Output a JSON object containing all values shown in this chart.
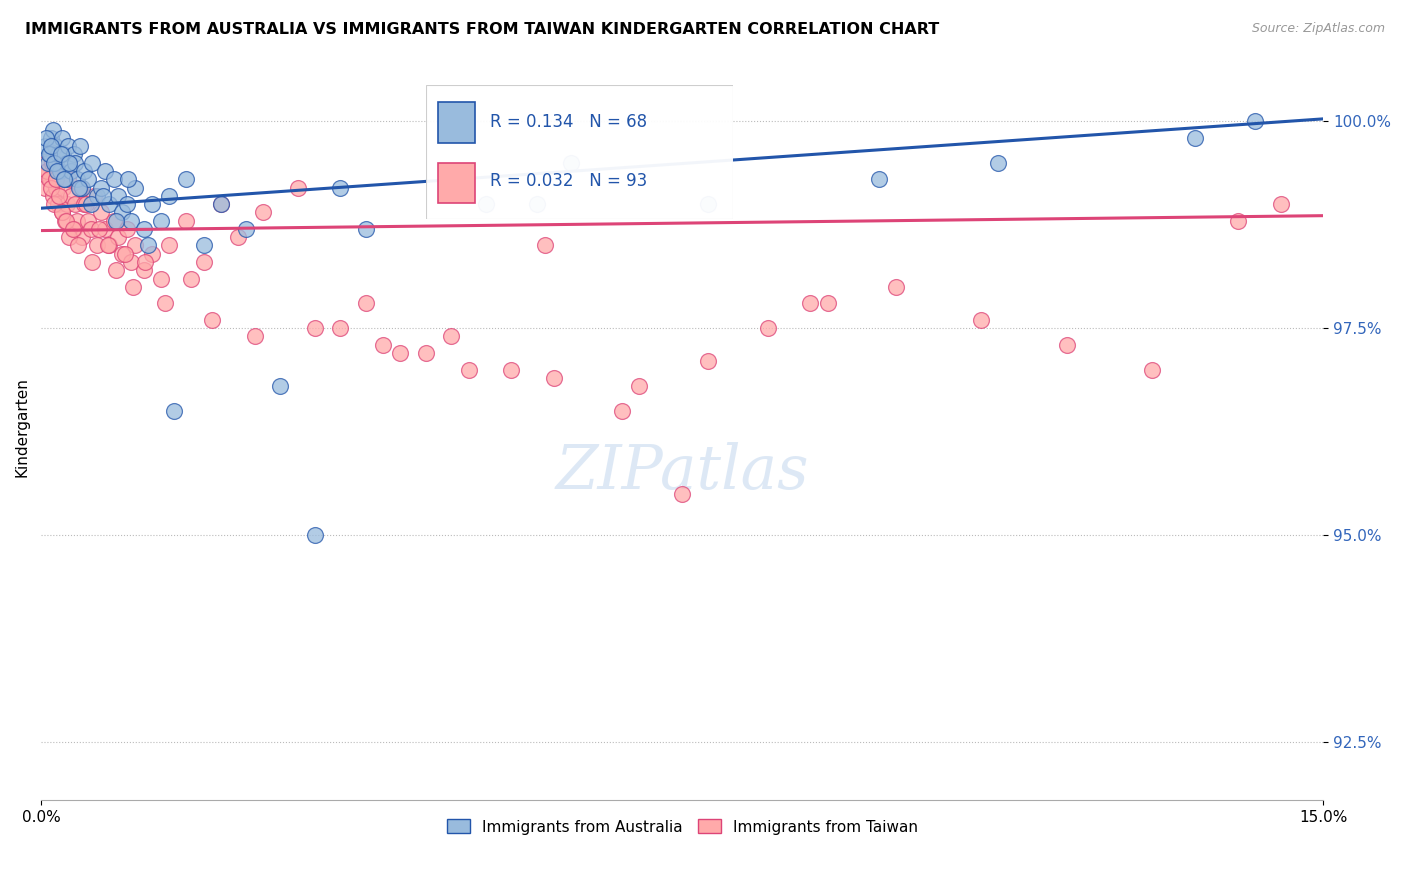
{
  "title": "IMMIGRANTS FROM AUSTRALIA VS IMMIGRANTS FROM TAIWAN KINDERGARTEN CORRELATION CHART",
  "source": "Source: ZipAtlas.com",
  "ylabel": "Kindergarten",
  "x_min": 0.0,
  "x_max": 15.0,
  "y_min": 91.8,
  "y_max": 100.8,
  "y_ticks": [
    92.5,
    95.0,
    97.5,
    100.0
  ],
  "legend_labels": [
    "Immigrants from Australia",
    "Immigrants from Taiwan"
  ],
  "r_australia": 0.134,
  "n_australia": 68,
  "r_taiwan": 0.032,
  "n_taiwan": 93,
  "color_australia": "#99BBDD",
  "color_taiwan": "#FFAAAA",
  "line_color_australia": "#2255AA",
  "line_color_taiwan": "#DD4477",
  "au_intercept": 98.95,
  "au_slope": 0.072,
  "tw_intercept": 98.68,
  "tw_slope": 0.012,
  "australia_x": [
    0.05,
    0.08,
    0.1,
    0.12,
    0.14,
    0.16,
    0.18,
    0.2,
    0.22,
    0.24,
    0.26,
    0.28,
    0.3,
    0.32,
    0.35,
    0.38,
    0.4,
    0.42,
    0.45,
    0.48,
    0.5,
    0.55,
    0.6,
    0.65,
    0.7,
    0.75,
    0.8,
    0.85,
    0.9,
    0.95,
    1.0,
    1.05,
    1.1,
    1.2,
    1.3,
    1.4,
    1.5,
    1.7,
    1.9,
    2.1,
    2.4,
    2.8,
    3.2,
    3.8,
    5.2,
    6.2,
    7.8,
    9.8,
    11.2,
    13.5,
    0.06,
    0.09,
    0.11,
    0.15,
    0.19,
    0.23,
    0.27,
    0.33,
    0.44,
    0.58,
    0.72,
    0.88,
    1.02,
    1.25,
    1.55,
    3.5,
    5.8,
    14.2
  ],
  "australia_y": [
    99.7,
    99.5,
    99.6,
    99.8,
    99.9,
    99.7,
    99.5,
    99.6,
    99.4,
    99.8,
    99.6,
    99.3,
    99.5,
    99.7,
    99.4,
    99.6,
    99.5,
    99.3,
    99.7,
    99.2,
    99.4,
    99.3,
    99.5,
    99.1,
    99.2,
    99.4,
    99.0,
    99.3,
    99.1,
    98.9,
    99.0,
    98.8,
    99.2,
    98.7,
    99.0,
    98.8,
    99.1,
    99.3,
    98.5,
    99.0,
    98.7,
    96.8,
    95.0,
    98.7,
    99.0,
    99.5,
    99.0,
    99.3,
    99.5,
    99.8,
    99.8,
    99.6,
    99.7,
    99.5,
    99.4,
    99.6,
    99.3,
    99.5,
    99.2,
    99.0,
    99.1,
    98.8,
    99.3,
    98.5,
    96.5,
    99.2,
    99.0,
    100.0
  ],
  "taiwan_x": [
    0.04,
    0.06,
    0.08,
    0.1,
    0.12,
    0.14,
    0.16,
    0.18,
    0.2,
    0.22,
    0.24,
    0.26,
    0.28,
    0.3,
    0.32,
    0.35,
    0.38,
    0.4,
    0.42,
    0.45,
    0.48,
    0.5,
    0.55,
    0.58,
    0.62,
    0.65,
    0.7,
    0.75,
    0.8,
    0.85,
    0.9,
    0.95,
    1.0,
    1.05,
    1.1,
    1.2,
    1.3,
    1.4,
    1.5,
    1.7,
    1.9,
    2.1,
    2.3,
    2.6,
    3.0,
    3.5,
    4.0,
    4.5,
    5.5,
    0.07,
    0.09,
    0.11,
    0.13,
    0.15,
    0.17,
    0.21,
    0.25,
    0.29,
    0.33,
    0.37,
    0.43,
    0.52,
    0.6,
    0.68,
    0.78,
    0.88,
    0.98,
    1.08,
    1.22,
    1.45,
    1.75,
    2.0,
    2.5,
    3.2,
    4.2,
    5.0,
    6.0,
    7.0,
    7.8,
    8.5,
    9.2,
    10.0,
    11.0,
    12.0,
    13.0,
    14.0,
    14.5,
    3.8,
    4.8,
    6.8,
    5.9,
    7.5,
    9.0
  ],
  "taiwan_y": [
    99.2,
    99.5,
    99.4,
    99.3,
    99.6,
    99.1,
    99.4,
    99.2,
    99.0,
    99.3,
    98.9,
    99.2,
    98.8,
    99.0,
    99.3,
    99.1,
    98.7,
    99.0,
    98.8,
    99.2,
    98.6,
    99.0,
    98.8,
    98.7,
    99.1,
    98.5,
    98.9,
    98.7,
    98.5,
    98.8,
    98.6,
    98.4,
    98.7,
    98.3,
    98.5,
    98.2,
    98.4,
    98.1,
    98.5,
    98.8,
    98.3,
    99.0,
    98.6,
    98.9,
    99.2,
    97.5,
    97.3,
    97.2,
    97.0,
    99.4,
    99.3,
    99.2,
    99.5,
    99.0,
    99.3,
    99.1,
    98.9,
    98.8,
    98.6,
    98.7,
    98.5,
    99.0,
    98.3,
    98.7,
    98.5,
    98.2,
    98.4,
    98.0,
    98.3,
    97.8,
    98.1,
    97.6,
    97.4,
    97.5,
    97.2,
    97.0,
    96.9,
    96.8,
    97.1,
    97.5,
    97.8,
    98.0,
    97.6,
    97.3,
    97.0,
    98.8,
    99.0,
    97.8,
    97.4,
    96.5,
    98.5,
    95.5,
    97.8
  ]
}
